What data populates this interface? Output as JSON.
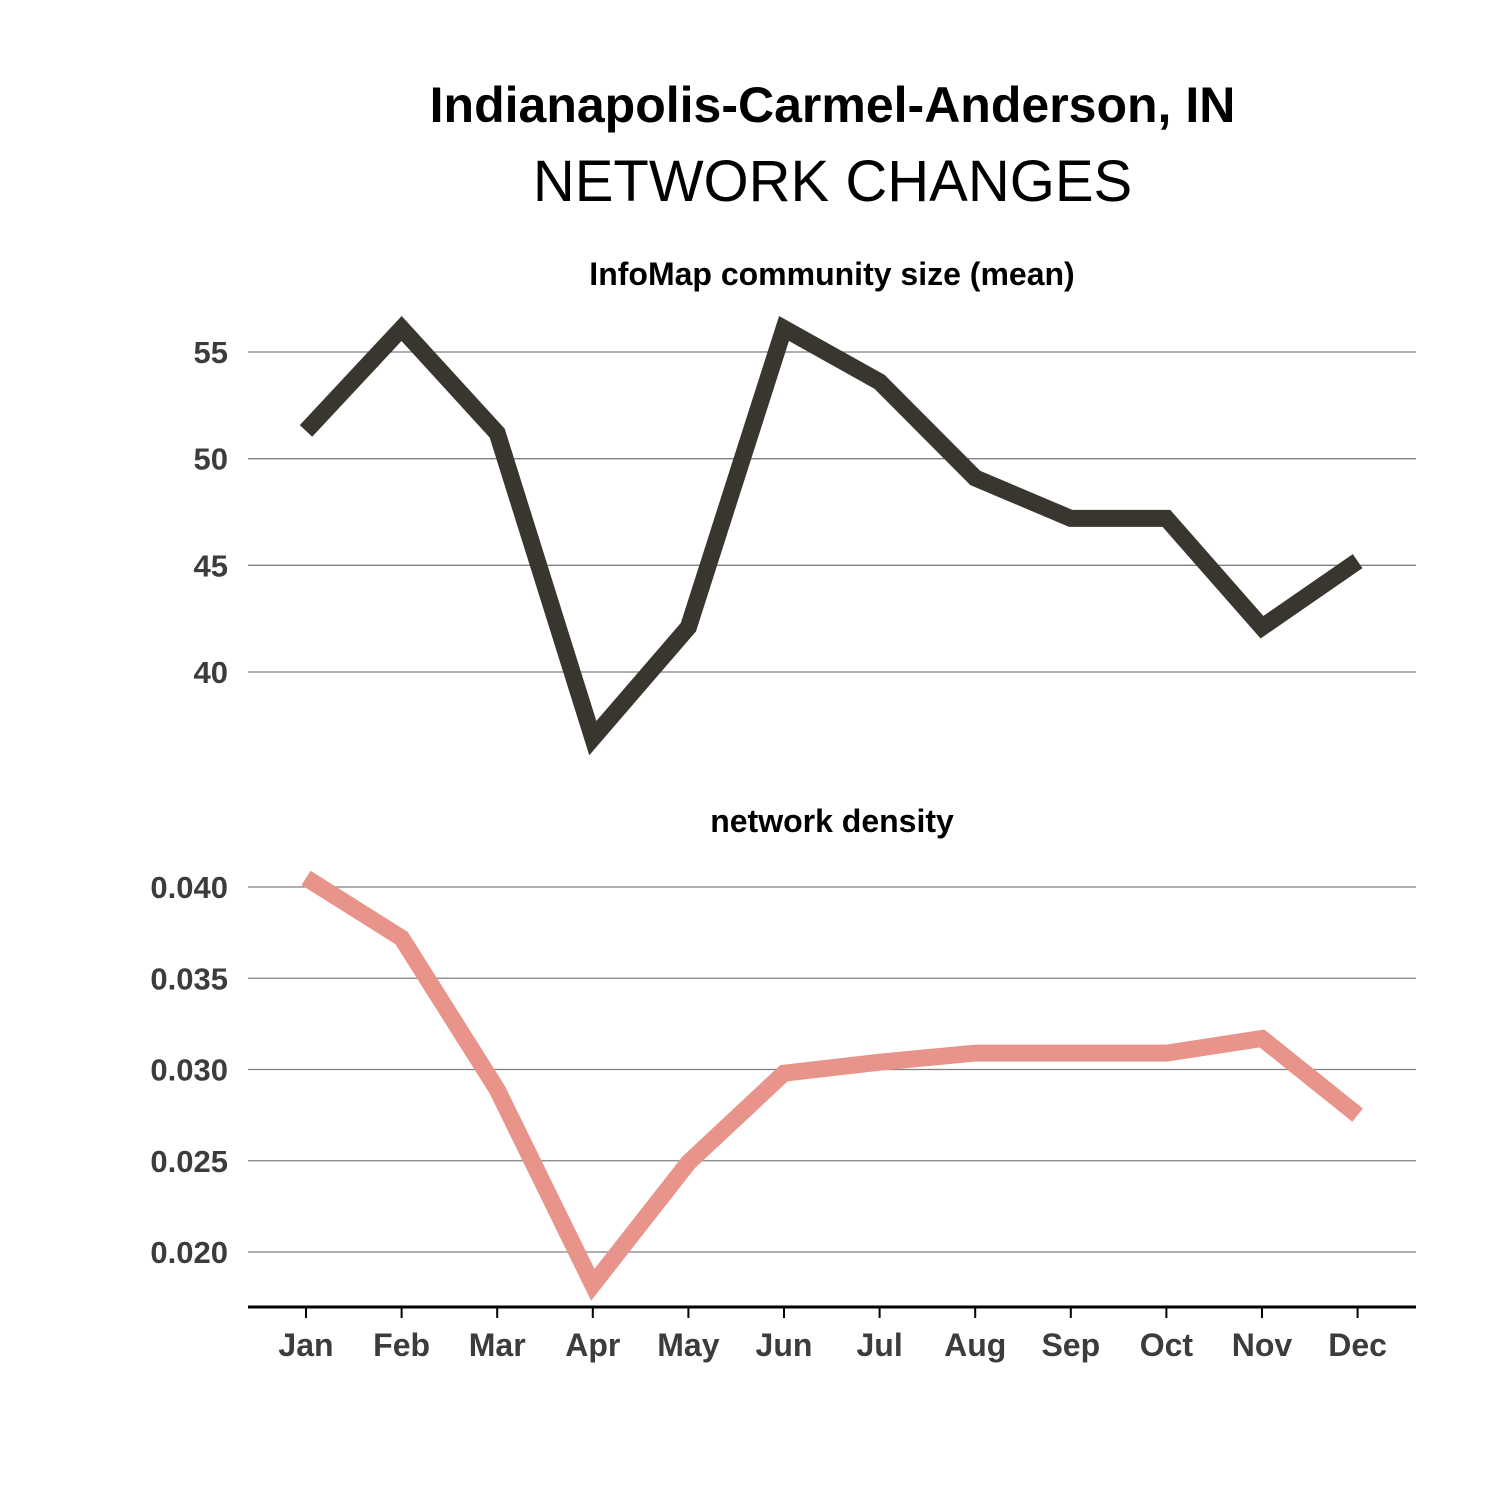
{
  "header": {
    "title": "Indianapolis-Carmel-Anderson, IN",
    "subtitle": "NETWORK CHANGES"
  },
  "chart_data": [
    {
      "type": "line",
      "title": "InfoMap community size (mean)",
      "categories": [
        "Jan",
        "Feb",
        "Mar",
        "Apr",
        "May",
        "Jun",
        "Jul",
        "Aug",
        "Sep",
        "Oct",
        "Nov",
        "Dec"
      ],
      "values": [
        51.3,
        56.1,
        51.2,
        36.9,
        42.1,
        56.1,
        53.6,
        49.1,
        47.2,
        47.2,
        42.1,
        45.2
      ],
      "yticks": [
        40,
        45,
        50,
        55
      ],
      "ylim": [
        35,
        57
      ],
      "grid": true,
      "color": "#38362f"
    },
    {
      "type": "line",
      "title": "network density",
      "categories": [
        "Jan",
        "Feb",
        "Mar",
        "Apr",
        "May",
        "Jun",
        "Jul",
        "Aug",
        "Sep",
        "Oct",
        "Nov",
        "Dec"
      ],
      "values": [
        0.0405,
        0.0372,
        0.0289,
        0.0182,
        0.0249,
        0.0298,
        0.0304,
        0.0309,
        0.0309,
        0.0309,
        0.0317,
        0.0275
      ],
      "yticks": [
        0.02,
        0.025,
        0.03,
        0.035,
        0.04
      ],
      "ytick_labels": [
        "0.020",
        "0.025",
        "0.030",
        "0.035",
        "0.040"
      ],
      "grid": true,
      "color": "#e8948a"
    }
  ]
}
